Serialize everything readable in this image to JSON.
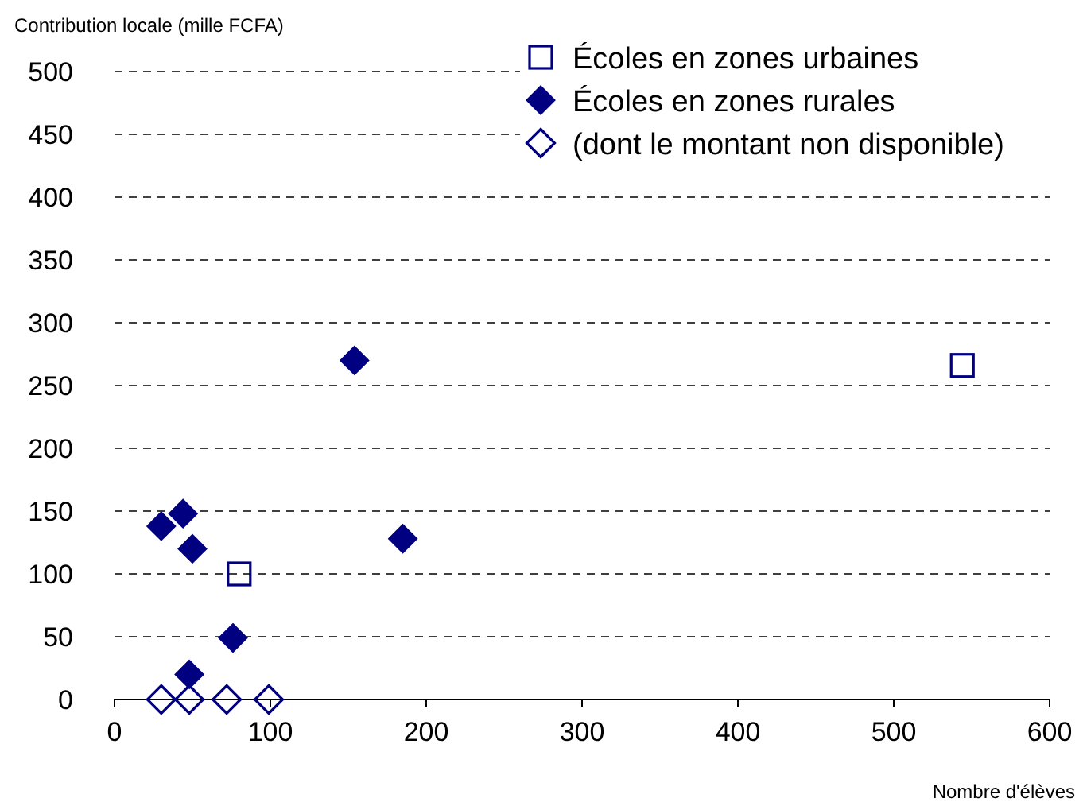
{
  "chart_data": {
    "type": "scatter",
    "ylabel": "Contribution locale (mille FCFA)",
    "xlabel": "Nombre d'élèves",
    "xlim": [
      0,
      600
    ],
    "xticks": [
      0,
      100,
      200,
      300,
      400,
      500,
      600
    ],
    "ylim": [
      0,
      500
    ],
    "yticks": [
      0,
      50,
      100,
      150,
      200,
      250,
      300,
      350,
      400,
      450,
      500
    ],
    "grid": "y",
    "legend": "top right",
    "series": [
      {
        "name": "Écoles en zones urbaines",
        "color": "#000080",
        "marker": "square",
        "x": [
          80,
          544
        ],
        "values": [
          100,
          266
        ]
      },
      {
        "name": "Écoles en zones rurales",
        "color": "#000080",
        "marker": "diamond",
        "x": [
          30,
          44,
          50,
          154,
          185,
          76,
          48
        ],
        "values": [
          138,
          148,
          120,
          270,
          128,
          49,
          20
        ]
      },
      {
        "name": "(dont le montant non disponible)",
        "color": "#000080",
        "marker": "diamond",
        "x": [
          30,
          48,
          72,
          99
        ],
        "values": [
          0,
          0,
          0,
          0
        ]
      }
    ]
  }
}
